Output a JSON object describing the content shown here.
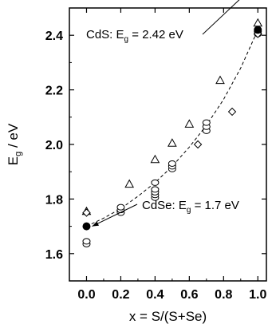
{
  "chart_data": {
    "type": "scatter",
    "title": "",
    "xlabel": "x = S/(S+Se)",
    "ylabel": "E_g / eV",
    "ylabel_parts": {
      "main": "E",
      "sub": "g",
      "rest": " / eV"
    },
    "xlim": [
      -0.1,
      1.05
    ],
    "ylim": [
      1.5,
      2.5
    ],
    "xticks": [
      0.0,
      0.2,
      0.4,
      0.6,
      0.8,
      1.0
    ],
    "xtick_labels": [
      "0.0",
      "0.2",
      "0.4",
      "0.6",
      "0.8",
      "1.0"
    ],
    "yticks": [
      1.6,
      1.8,
      2.0,
      2.2,
      2.4
    ],
    "ytick_labels": [
      "1.6",
      "1.8",
      "2.0",
      "2.2",
      "2.4"
    ],
    "grid": false,
    "series": [
      {
        "marker": "circle-open",
        "points": [
          [
            0.0,
            1.635
          ],
          [
            0.0,
            1.645
          ],
          [
            0.2,
            1.75
          ],
          [
            0.2,
            1.76
          ],
          [
            0.2,
            1.77
          ],
          [
            0.4,
            1.805
          ],
          [
            0.4,
            1.815
          ],
          [
            0.4,
            1.825
          ],
          [
            0.4,
            1.835
          ],
          [
            0.4,
            1.86
          ],
          [
            0.5,
            1.91
          ],
          [
            0.5,
            1.92
          ],
          [
            0.5,
            1.93
          ],
          [
            0.7,
            2.05
          ],
          [
            0.7,
            2.065
          ],
          [
            0.7,
            2.08
          ],
          [
            1.0,
            2.405
          ],
          [
            1.0,
            2.415
          ]
        ]
      },
      {
        "marker": "triangle-open",
        "points": [
          [
            0.0,
            1.755
          ],
          [
            0.25,
            1.855
          ],
          [
            0.4,
            1.945
          ],
          [
            0.5,
            2.005
          ],
          [
            0.6,
            2.075
          ],
          [
            0.78,
            2.235
          ],
          [
            1.0,
            2.445
          ]
        ]
      },
      {
        "marker": "diamond-open",
        "points": [
          [
            0.0,
            1.75
          ],
          [
            0.65,
            2.0
          ],
          [
            0.85,
            2.12
          ],
          [
            1.0,
            2.405
          ]
        ]
      },
      {
        "marker": "circle-filled",
        "points": [
          [
            0.0,
            1.7
          ],
          [
            1.0,
            2.42
          ]
        ]
      }
    ],
    "fit_curve": {
      "style": "dashed",
      "points": [
        [
          0.0,
          1.7
        ],
        [
          0.1,
          1.73
        ],
        [
          0.2,
          1.765
        ],
        [
          0.3,
          1.81
        ],
        [
          0.4,
          1.86
        ],
        [
          0.5,
          1.92
        ],
        [
          0.6,
          1.99
        ],
        [
          0.7,
          2.07
        ],
        [
          0.8,
          2.165
        ],
        [
          0.9,
          2.28
        ],
        [
          1.0,
          2.42
        ]
      ]
    },
    "annotations": [
      {
        "name": "cds",
        "text_main": "CdS: E",
        "text_sub": "g",
        "text_rest": " = 2.42 eV",
        "arrow_to": [
          1.0,
          2.42
        ]
      },
      {
        "name": "cdse",
        "text_main": "CdSe: E",
        "text_sub": "g",
        "text_rest": " = 1.7 eV",
        "arrow_to": [
          0.0,
          1.7
        ]
      }
    ]
  }
}
